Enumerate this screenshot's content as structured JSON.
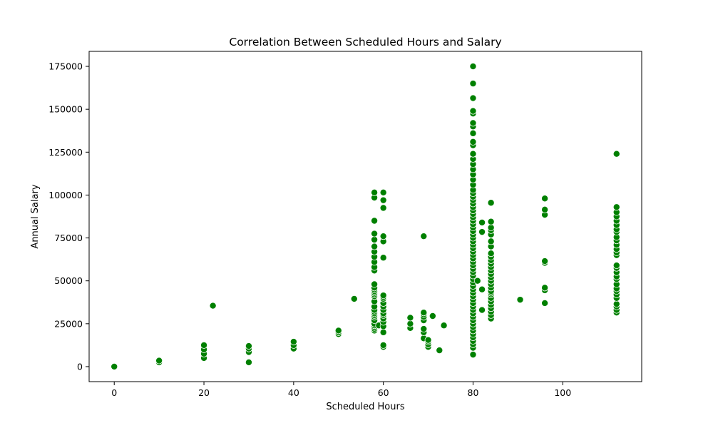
{
  "chart_data": {
    "type": "scatter",
    "title": "Correlation Between Scheduled Hours and Salary",
    "xlabel": "Scheduled Hours",
    "ylabel": "Annual Salary",
    "xlim": [
      -5.6,
      117.6
    ],
    "ylim": [
      -8750,
      183750
    ],
    "xticks": [
      0,
      20,
      40,
      60,
      80,
      100
    ],
    "yticks": [
      0,
      25000,
      50000,
      75000,
      100000,
      125000,
      150000,
      175000
    ],
    "grid": false,
    "legend": "none",
    "marker_color": "#008000",
    "marker_edge": "#ffffff",
    "points": [
      [
        0,
        0
      ],
      [
        10,
        2500
      ],
      [
        10,
        3500
      ],
      [
        20,
        5000
      ],
      [
        20,
        7500
      ],
      [
        20,
        10000
      ],
      [
        20,
        12500
      ],
      [
        22,
        35500
      ],
      [
        30,
        2500
      ],
      [
        30,
        8500
      ],
      [
        30,
        10500
      ],
      [
        30,
        12000
      ],
      [
        40,
        10500
      ],
      [
        40,
        12500
      ],
      [
        40,
        14500
      ],
      [
        50,
        19000
      ],
      [
        50,
        20000
      ],
      [
        50,
        21000
      ],
      [
        53.5,
        39500
      ],
      [
        58,
        21000
      ],
      [
        58,
        22000
      ],
      [
        58,
        23000
      ],
      [
        58,
        24000
      ],
      [
        58,
        25000
      ],
      [
        58,
        27000
      ],
      [
        58,
        29000
      ],
      [
        58,
        30000
      ],
      [
        58,
        31000
      ],
      [
        58,
        32000
      ],
      [
        58,
        33000
      ],
      [
        58,
        35000
      ],
      [
        58,
        38000
      ],
      [
        58,
        41000
      ],
      [
        58,
        42000
      ],
      [
        58,
        43000
      ],
      [
        58,
        44000
      ],
      [
        58,
        45000
      ],
      [
        58,
        46000
      ],
      [
        58,
        48000
      ],
      [
        58,
        56000
      ],
      [
        58,
        58000
      ],
      [
        58,
        61000
      ],
      [
        58,
        64000
      ],
      [
        58,
        67000
      ],
      [
        58,
        70000
      ],
      [
        58,
        74000
      ],
      [
        58,
        77500
      ],
      [
        58,
        85000
      ],
      [
        58,
        98500
      ],
      [
        58,
        101500
      ],
      [
        59,
        24000
      ],
      [
        60,
        11500
      ],
      [
        60,
        12500
      ],
      [
        60,
        20000
      ],
      [
        60,
        23500
      ],
      [
        60,
        26000
      ],
      [
        60,
        28000
      ],
      [
        60,
        30000
      ],
      [
        60,
        31000
      ],
      [
        60,
        33000
      ],
      [
        60,
        35000
      ],
      [
        60,
        37000
      ],
      [
        60,
        39500
      ],
      [
        60,
        40500
      ],
      [
        60,
        41500
      ],
      [
        60,
        63500
      ],
      [
        60,
        73000
      ],
      [
        60,
        76000
      ],
      [
        60,
        92500
      ],
      [
        60,
        97000
      ],
      [
        60,
        101500
      ],
      [
        66,
        22500
      ],
      [
        66,
        25000
      ],
      [
        66,
        28500
      ],
      [
        69,
        16500
      ],
      [
        69,
        20000
      ],
      [
        69,
        22000
      ],
      [
        69,
        27000
      ],
      [
        69,
        29000
      ],
      [
        69,
        30500
      ],
      [
        69,
        31500
      ],
      [
        69,
        76000
      ],
      [
        70,
        11500
      ],
      [
        70,
        13000
      ],
      [
        70,
        14500
      ],
      [
        70,
        15500
      ],
      [
        71,
        29500
      ],
      [
        72.5,
        9500
      ],
      [
        73.5,
        24000
      ],
      [
        80,
        7000
      ],
      [
        80,
        11000
      ],
      [
        80,
        13000
      ],
      [
        80,
        15000
      ],
      [
        80,
        17000
      ],
      [
        80,
        19000
      ],
      [
        80,
        21000
      ],
      [
        80,
        23000
      ],
      [
        80,
        25000
      ],
      [
        80,
        27000
      ],
      [
        80,
        29000
      ],
      [
        80,
        31000
      ],
      [
        80,
        33000
      ],
      [
        80,
        35000
      ],
      [
        80,
        37000
      ],
      [
        80,
        39000
      ],
      [
        80,
        41000
      ],
      [
        80,
        43000
      ],
      [
        80,
        45000
      ],
      [
        80,
        47000
      ],
      [
        80,
        49000
      ],
      [
        80,
        51000
      ],
      [
        80,
        53000
      ],
      [
        80,
        55000
      ],
      [
        80,
        57000
      ],
      [
        80,
        59000
      ],
      [
        80,
        61000
      ],
      [
        80,
        63000
      ],
      [
        80,
        65000
      ],
      [
        80,
        67000
      ],
      [
        80,
        69000
      ],
      [
        80,
        71000
      ],
      [
        80,
        73000
      ],
      [
        80,
        75000
      ],
      [
        80,
        77000
      ],
      [
        80,
        79000
      ],
      [
        80,
        81000
      ],
      [
        80,
        83000
      ],
      [
        80,
        85000
      ],
      [
        80,
        87000
      ],
      [
        80,
        89000
      ],
      [
        80,
        91000
      ],
      [
        80,
        93000
      ],
      [
        80,
        95000
      ],
      [
        80,
        97000
      ],
      [
        80,
        99000
      ],
      [
        80,
        101000
      ],
      [
        80,
        103000
      ],
      [
        80,
        106000
      ],
      [
        80,
        109000
      ],
      [
        80,
        112000
      ],
      [
        80,
        115000
      ],
      [
        80,
        118000
      ],
      [
        80,
        121000
      ],
      [
        80,
        124000
      ],
      [
        80,
        129000
      ],
      [
        80,
        131000
      ],
      [
        80,
        136000
      ],
      [
        80,
        140000
      ],
      [
        80,
        142000
      ],
      [
        80,
        147500
      ],
      [
        80,
        149000
      ],
      [
        80,
        156500
      ],
      [
        80,
        165000
      ],
      [
        80,
        175000
      ],
      [
        81,
        50000
      ],
      [
        82,
        33000
      ],
      [
        82,
        45000
      ],
      [
        82,
        78500
      ],
      [
        82,
        84000
      ],
      [
        84,
        28000
      ],
      [
        84,
        30000
      ],
      [
        84,
        32000
      ],
      [
        84,
        34000
      ],
      [
        84,
        36000
      ],
      [
        84,
        38000
      ],
      [
        84,
        40000
      ],
      [
        84,
        42000
      ],
      [
        84,
        43000
      ],
      [
        84,
        44000
      ],
      [
        84,
        46000
      ],
      [
        84,
        48000
      ],
      [
        84,
        50000
      ],
      [
        84,
        52000
      ],
      [
        84,
        54000
      ],
      [
        84,
        56000
      ],
      [
        84,
        58000
      ],
      [
        84,
        60000
      ],
      [
        84,
        62000
      ],
      [
        84,
        64000
      ],
      [
        84,
        66000
      ],
      [
        84,
        70000
      ],
      [
        84,
        73000
      ],
      [
        84,
        77000
      ],
      [
        84,
        79500
      ],
      [
        84,
        81000
      ],
      [
        84,
        84500
      ],
      [
        84,
        95500
      ],
      [
        90.5,
        39000
      ],
      [
        96,
        37000
      ],
      [
        96,
        44500
      ],
      [
        96,
        46000
      ],
      [
        96,
        60500
      ],
      [
        96,
        61500
      ],
      [
        96,
        88500
      ],
      [
        96,
        91500
      ],
      [
        96,
        98000
      ],
      [
        112,
        31500
      ],
      [
        112,
        33000
      ],
      [
        112,
        35000
      ],
      [
        112,
        36500
      ],
      [
        112,
        40000
      ],
      [
        112,
        42000
      ],
      [
        112,
        44000
      ],
      [
        112,
        45500
      ],
      [
        112,
        48000
      ],
      [
        112,
        51000
      ],
      [
        112,
        52500
      ],
      [
        112,
        55000
      ],
      [
        112,
        57500
      ],
      [
        112,
        59000
      ],
      [
        112,
        65000
      ],
      [
        112,
        66500
      ],
      [
        112,
        68500
      ],
      [
        112,
        71000
      ],
      [
        112,
        73500
      ],
      [
        112,
        75500
      ],
      [
        112,
        78500
      ],
      [
        112,
        80000
      ],
      [
        112,
        82500
      ],
      [
        112,
        85000
      ],
      [
        112,
        87500
      ],
      [
        112,
        90000
      ],
      [
        112,
        93000
      ],
      [
        112,
        124000
      ]
    ]
  }
}
